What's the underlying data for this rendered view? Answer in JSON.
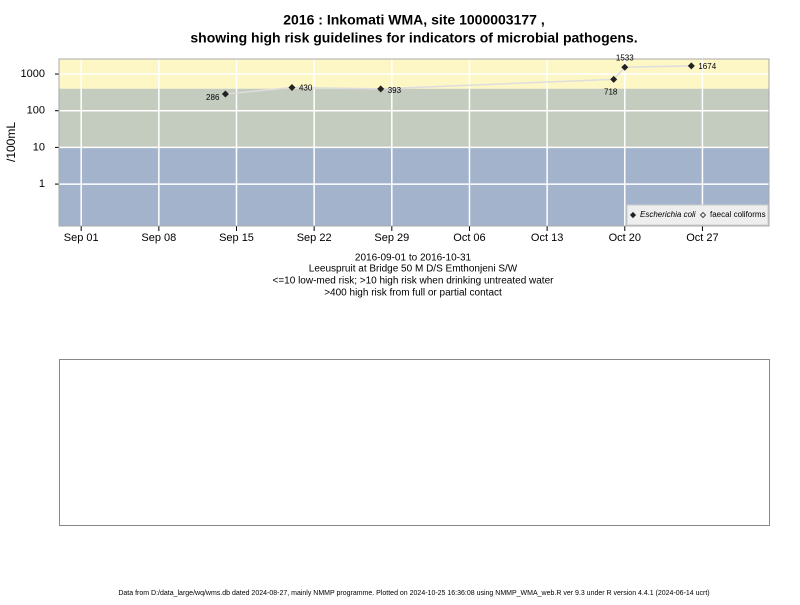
{
  "chart_data": {
    "type": "line",
    "title": "2016 : Inkomati WMA, site 1000003177 ,",
    "subtitle": "showing high risk guidelines for indicators of microbial pathogens.",
    "ylabel": "/100mL",
    "notes": [
      "2016-09-01 to 2016-10-31",
      "Leeuspruit at Bridge 50 M D/S Emthonjeni S/W",
      "<=10 low-med risk; >10 high risk when drinking untreated water",
      ">400 high risk from full or partial contact"
    ],
    "footer": "Data from D:/data_large/wq/wms.db dated 2024-08-27, mainly NMMP programme. Plotted on 2024-10-25 16:36:08 using NMMP_WMA_web.R ver 9.3 under R version 4.4.1 (2024-06-14 ucrt)",
    "x": [
      "2016-09-14",
      "2016-09-20",
      "2016-09-28",
      "2016-10-19",
      "2016-10-20",
      "2016-10-26"
    ],
    "series": [
      {
        "name": "Escherichia coli",
        "color": "#222222",
        "values": [
          286,
          430,
          393,
          718,
          1533,
          1674
        ]
      },
      {
        "name": "faecal coliforms",
        "color": "#222222",
        "values": [
          null,
          null,
          null,
          null,
          null,
          null
        ]
      }
    ],
    "line_color": "#dddddd",
    "xlim": [
      "2016-08-30",
      "2016-11-02"
    ],
    "xticks": [
      {
        "value": "2016-09-01",
        "label": "Sep 01"
      },
      {
        "value": "2016-09-08",
        "label": "Sep 08"
      },
      {
        "value": "2016-09-15",
        "label": "Sep 15"
      },
      {
        "value": "2016-09-22",
        "label": "Sep 22"
      },
      {
        "value": "2016-09-29",
        "label": "Sep 29"
      },
      {
        "value": "2016-10-06",
        "label": "Oct 06"
      },
      {
        "value": "2016-10-13",
        "label": "Oct 13"
      },
      {
        "value": "2016-10-20",
        "label": "Oct 20"
      },
      {
        "value": "2016-10-27",
        "label": "Oct 27"
      }
    ],
    "ylim": [
      0.072,
      2570
    ],
    "yticks": [
      1,
      10,
      100,
      1000
    ],
    "log_y": true,
    "grid": true,
    "grid_color": "#ffffff",
    "thresholds": [
      10,
      400
    ],
    "band_colors": [
      "#a3b3cc",
      "#c4cbbf",
      "#fdf7c6"
    ],
    "legend": "bottom-right"
  }
}
